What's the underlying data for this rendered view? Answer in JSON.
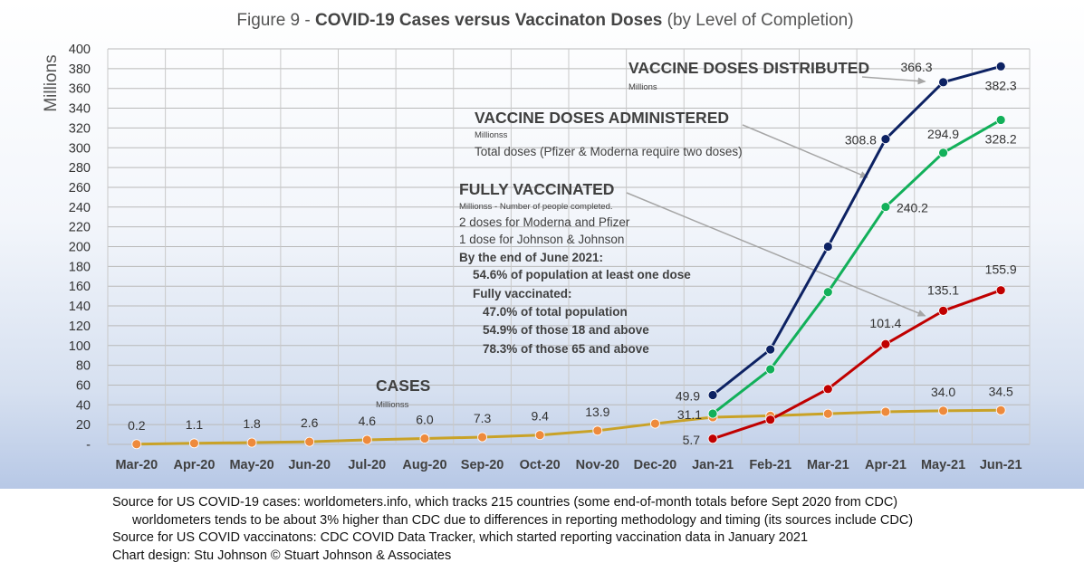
{
  "title": {
    "prefix": "Figure 9 - ",
    "bold": "COVID-19 Cases versus Vaccinaton Doses",
    "suffix": " (by Level of Completion)"
  },
  "chart_data": {
    "type": "line",
    "title": "Figure 9 - COVID-19 Cases versus Vaccinaton Doses (by Level of Completion)",
    "ylabel": "Millions",
    "xlabel": "",
    "ylim": [
      0,
      400
    ],
    "y_ticks": [
      "-",
      "20",
      "40",
      "60",
      "80",
      "100",
      "120",
      "140",
      "160",
      "180",
      "200",
      "220",
      "240",
      "260",
      "280",
      "300",
      "320",
      "340",
      "360",
      "380",
      "400"
    ],
    "categories": [
      "Mar-20",
      "Apr-20",
      "May-20",
      "Jun-20",
      "Jul-20",
      "Aug-20",
      "Sep-20",
      "Oct-20",
      "Nov-20",
      "Dec-20",
      "Jan-21",
      "Feb-21",
      "Mar-21",
      "Apr-21",
      "May-21",
      "Jun-21"
    ],
    "grid": true,
    "series": [
      {
        "name": "CASES",
        "color": "#c9a227",
        "marker_color": "#ee8a3c",
        "values": [
          0.2,
          1.1,
          1.8,
          2.6,
          4.6,
          6.0,
          7.3,
          9.4,
          13.9,
          21,
          27.5,
          29,
          31,
          33,
          34.0,
          34.5
        ],
        "labels": [
          "0.2",
          "1.1",
          "1.8",
          "2.6",
          "4.6",
          "6.0",
          "7.3",
          "9.4",
          "13.9",
          "",
          "",
          "",
          "",
          "",
          "34.0",
          "34.5"
        ]
      },
      {
        "name": "VACCINE DOSES DISTRIBUTED",
        "color": "#0d2263",
        "marker_color": "#0d2263",
        "values": [
          null,
          null,
          null,
          null,
          null,
          null,
          null,
          null,
          null,
          null,
          49.9,
          96,
          200,
          308.8,
          366.3,
          382.3
        ],
        "labels": [
          "",
          "",
          "",
          "",
          "",
          "",
          "",
          "",
          "",
          "",
          "49.9",
          "",
          "",
          "308.8",
          "366.3",
          "382.3"
        ]
      },
      {
        "name": "VACCINE DOSES ADMINISTERED",
        "color": "#12b05a",
        "marker_color": "#12b05a",
        "values": [
          null,
          null,
          null,
          null,
          null,
          null,
          null,
          null,
          null,
          null,
          31.1,
          76,
          154,
          240.2,
          294.9,
          328.2
        ],
        "labels": [
          "",
          "",
          "",
          "",
          "",
          "",
          "",
          "",
          "",
          "",
          "31.1",
          "",
          "",
          "240.2",
          "294.9",
          "328.2"
        ]
      },
      {
        "name": "FULLY VACCINATED",
        "color": "#c00000",
        "marker_color": "#c00000",
        "values": [
          null,
          null,
          null,
          null,
          null,
          null,
          null,
          null,
          null,
          null,
          5.7,
          25,
          56,
          101.4,
          135.1,
          155.9
        ],
        "labels": [
          "",
          "",
          "",
          "",
          "",
          "",
          "",
          "",
          "",
          "",
          "5.7",
          "",
          "",
          "101.4",
          "135.1",
          "155.9"
        ]
      }
    ]
  },
  "annotations": {
    "distributed": {
      "heading": "VACCINE DOSES DISTRIBUTED",
      "unit": "Millions"
    },
    "administered": {
      "heading": "VACCINE DOSES ADMINISTERED",
      "unit": "Millionss",
      "note": "Total doses (Pfizer & Moderna require two doses)"
    },
    "fully": {
      "heading": "FULLY VACCINATED",
      "unit": "Millionss - Number of people completed.",
      "line1": "2 doses for Moderna and Pfizer",
      "line2": "1 dose for Johnson & Johnson",
      "bold1": "By the end of June 2021:",
      "bold2": "54.6% of population at least one dose",
      "bold3": "Fully vaccinated:",
      "bold4": "47.0% of total population",
      "bold5": "54.9% of those 18 and above",
      "bold6": "78.3% of those 65 and above"
    },
    "cases": {
      "heading": "CASES",
      "unit": "Millionss"
    }
  },
  "sources": {
    "line1": "Source for US COVID-19 cases: worldometers.info, which tracks 215 countries  (some end-of-month totals before Sept 2020 from CDC)",
    "line2": "worldometers tends to be about 3% higher than CDC due to differences in reporting methodology and timing (its sources include CDC)",
    "line3": "Source for US COVID vaccinatons: CDC COVID Data Tracker, which started reporting vaccination data in January 2021",
    "line4": "Chart design: Stu Johnson © Stuart Johnson & Associates"
  }
}
